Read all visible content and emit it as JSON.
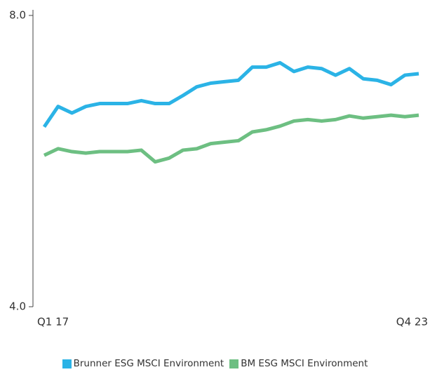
{
  "chart_data": {
    "type": "line",
    "categories": [
      "Q1 17",
      null,
      null,
      null,
      null,
      null,
      null,
      null,
      null,
      null,
      null,
      null,
      null,
      null,
      null,
      null,
      null,
      null,
      null,
      null,
      null,
      null,
      null,
      null,
      null,
      null,
      null,
      "Q4 23"
    ],
    "series": [
      {
        "name": "Brunner ESG MSCI Environment",
        "color": "#2bb3e6",
        "values": [
          6.47,
          6.75,
          6.66,
          6.75,
          6.79,
          6.79,
          6.79,
          6.83,
          6.79,
          6.79,
          6.9,
          7.02,
          7.07,
          7.09,
          7.11,
          7.29,
          7.29,
          7.35,
          7.23,
          7.29,
          7.27,
          7.18,
          7.27,
          7.13,
          7.11,
          7.05,
          7.18,
          7.2
        ]
      },
      {
        "name": "BM ESG MSCI Environment",
        "color": "#6dbf82",
        "values": [
          6.08,
          6.17,
          6.13,
          6.11,
          6.13,
          6.13,
          6.13,
          6.15,
          5.99,
          6.04,
          6.15,
          6.17,
          6.24,
          6.26,
          6.28,
          6.4,
          6.43,
          6.48,
          6.55,
          6.57,
          6.55,
          6.57,
          6.62,
          6.59,
          6.61,
          6.63,
          6.61,
          6.63
        ]
      }
    ],
    "ylim": [
      4,
      8
    ],
    "yticks": [
      {
        "value": 4,
        "label": "4.0"
      },
      {
        "value": 8,
        "label": "8.0"
      }
    ],
    "legend": "bottom"
  }
}
